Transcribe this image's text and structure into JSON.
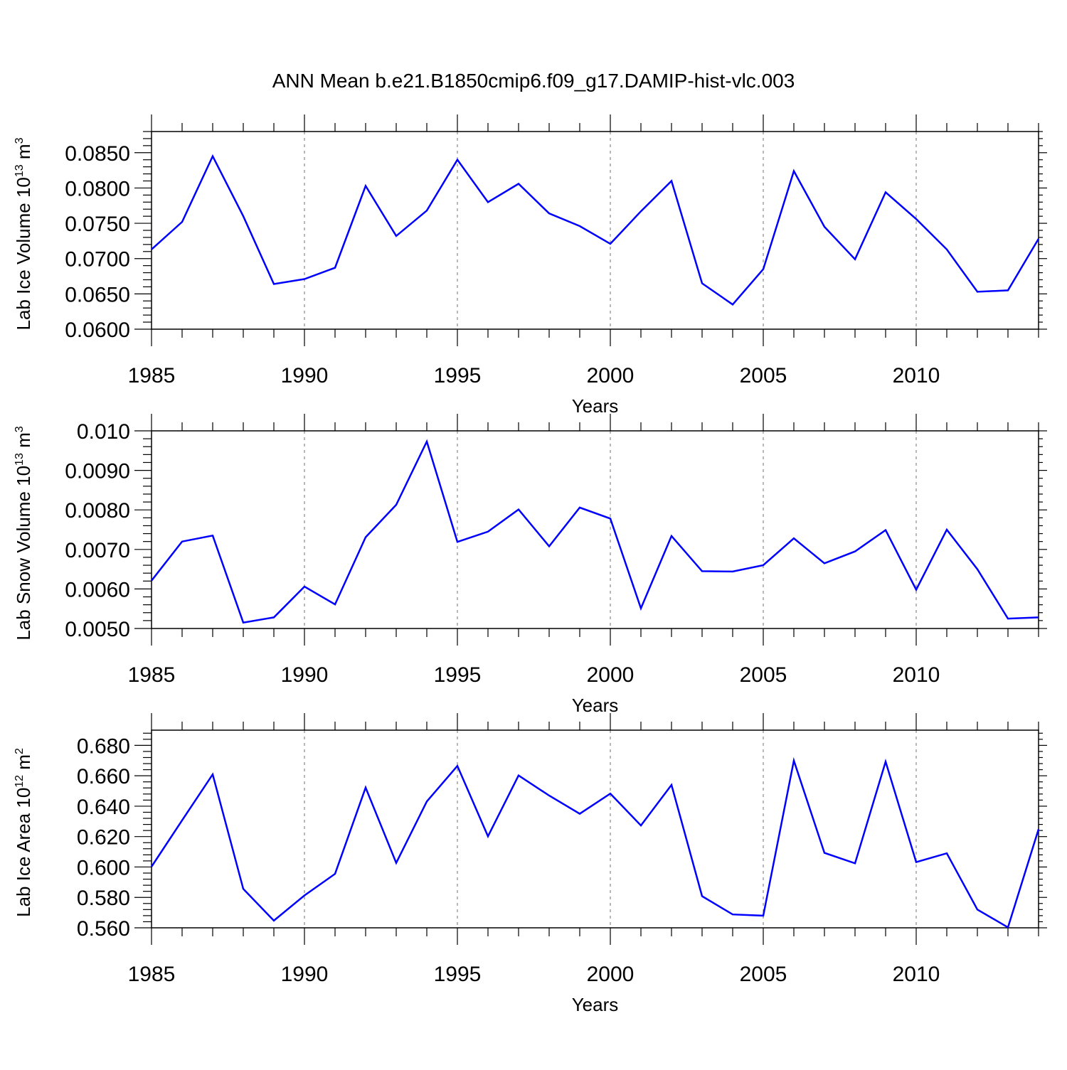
{
  "figure": {
    "title": "ANN Mean b.e21.B1850cmip6.f09_g17.DAMIP-hist-vlc.003",
    "line_color": "#0000ff",
    "grid_color": "#888888"
  },
  "chart_data": [
    {
      "type": "line",
      "title": "",
      "ylabel_main": "Lab Ice Volume 10",
      "ylabel_exp": "13",
      "ylabel_unit": " m",
      "ylabel_unit_exp": "3",
      "xlabel": "Years",
      "xlim": [
        1985,
        2014
      ],
      "ylim": [
        0.06,
        0.088
      ],
      "xticks": [
        1985,
        1990,
        1995,
        2000,
        2005,
        2010
      ],
      "yticks": [
        0.06,
        0.065,
        0.07,
        0.075,
        0.08,
        0.085
      ],
      "ytick_labels": [
        "0.0600",
        "0.0650",
        "0.0700",
        "0.0750",
        "0.0800",
        "0.0850"
      ],
      "grid": "x-major-dashed",
      "x": [
        1985,
        1986,
        1987,
        1988,
        1989,
        1990,
        1991,
        1992,
        1993,
        1994,
        1995,
        1996,
        1997,
        1998,
        1999,
        2000,
        2001,
        2002,
        2003,
        2004,
        2005,
        2006,
        2007,
        2008,
        2009,
        2010,
        2011,
        2012,
        2013,
        2014
      ],
      "values": [
        0.0713,
        0.0752,
        0.0845,
        0.076,
        0.0664,
        0.0671,
        0.0687,
        0.0803,
        0.0732,
        0.0768,
        0.084,
        0.078,
        0.0806,
        0.0764,
        0.0746,
        0.0721,
        0.0767,
        0.081,
        0.0665,
        0.0635,
        0.0685,
        0.0824,
        0.0745,
        0.0699,
        0.0794,
        0.0756,
        0.0713,
        0.0653,
        0.0655,
        0.0728
      ]
    },
    {
      "type": "line",
      "title": "",
      "ylabel_main": "Lab Snow Volume 10",
      "ylabel_exp": "13",
      "ylabel_unit": " m",
      "ylabel_unit_exp": "3",
      "xlabel": "Years",
      "xlim": [
        1985,
        2014
      ],
      "ylim": [
        0.005,
        0.01
      ],
      "xticks": [
        1985,
        1990,
        1995,
        2000,
        2005,
        2010
      ],
      "yticks": [
        0.005,
        0.006,
        0.007,
        0.008,
        0.009,
        0.01
      ],
      "ytick_labels": [
        "0.0050",
        "0.0060",
        "0.0070",
        "0.0080",
        "0.0090",
        "0.010"
      ],
      "grid": "x-major-dashed",
      "x": [
        1985,
        1986,
        1987,
        1988,
        1989,
        1990,
        1991,
        1992,
        1993,
        1994,
        1995,
        1996,
        1997,
        1998,
        1999,
        2000,
        2001,
        2002,
        2003,
        2004,
        2005,
        2006,
        2007,
        2008,
        2009,
        2010,
        2011,
        2012,
        2013,
        2014
      ],
      "values": [
        0.00621,
        0.0072,
        0.00735,
        0.00515,
        0.00528,
        0.00606,
        0.00561,
        0.00731,
        0.00813,
        0.00973,
        0.00719,
        0.00745,
        0.00801,
        0.00708,
        0.00806,
        0.00778,
        0.00551,
        0.00734,
        0.00645,
        0.00644,
        0.0066,
        0.00728,
        0.00665,
        0.00695,
        0.00749,
        0.00598,
        0.0075,
        0.0065,
        0.00525,
        0.00528
      ]
    },
    {
      "type": "line",
      "title": "",
      "ylabel_main": "Lab Ice Area 10",
      "ylabel_exp": "12",
      "ylabel_unit": " m",
      "ylabel_unit_exp": "2",
      "xlabel": "Years",
      "xlim": [
        1985,
        2014
      ],
      "ylim": [
        0.56,
        0.69
      ],
      "xticks": [
        1985,
        1990,
        1995,
        2000,
        2005,
        2010
      ],
      "yticks": [
        0.56,
        0.58,
        0.6,
        0.62,
        0.64,
        0.66,
        0.68
      ],
      "ytick_labels": [
        "0.560",
        "0.580",
        "0.600",
        "0.620",
        "0.640",
        "0.660",
        "0.680"
      ],
      "grid": "x-major-dashed",
      "x": [
        1985,
        1986,
        1987,
        1988,
        1989,
        1990,
        1991,
        1992,
        1993,
        1994,
        1995,
        1996,
        1997,
        1998,
        1999,
        2000,
        2001,
        2002,
        2003,
        2004,
        2005,
        2006,
        2007,
        2008,
        2009,
        2010,
        2011,
        2012,
        2013,
        2014
      ],
      "values": [
        0.6002,
        0.6307,
        0.6609,
        0.5856,
        0.5647,
        0.5813,
        0.5955,
        0.6522,
        0.6027,
        0.6431,
        0.6665,
        0.6202,
        0.6602,
        0.647,
        0.635,
        0.6483,
        0.6273,
        0.654,
        0.5808,
        0.5688,
        0.568,
        0.67,
        0.6093,
        0.6024,
        0.6693,
        0.6032,
        0.609,
        0.572,
        0.5603,
        0.6248
      ]
    }
  ]
}
